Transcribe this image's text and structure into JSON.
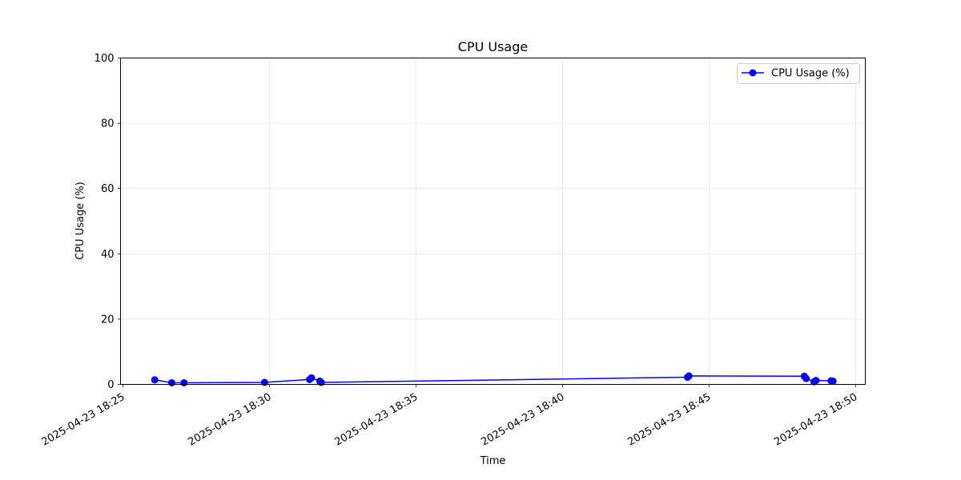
{
  "chart_data": {
    "type": "line",
    "title": "CPU Usage",
    "xlabel": "Time",
    "ylabel": "CPU Usage (%)",
    "ylim": [
      0,
      100
    ],
    "xlim": [
      "2025-04-23 18:24:55",
      "2025-04-23 18:50:20"
    ],
    "x_ticks": [
      "2025-04-23 18:25",
      "2025-04-23 18:30",
      "2025-04-23 18:35",
      "2025-04-23 18:40",
      "2025-04-23 18:45",
      "2025-04-23 18:50"
    ],
    "y_ticks": [
      0,
      20,
      40,
      60,
      80,
      100
    ],
    "grid": true,
    "legend_position": "top-right",
    "series": [
      {
        "name": "CPU Usage (%)",
        "color": "#0000ff",
        "marker": "circle",
        "x": [
          "2025-04-23 18:26:05",
          "2025-04-23 18:26:40",
          "2025-04-23 18:27:05",
          "2025-04-23 18:29:50",
          "2025-04-23 18:31:22",
          "2025-04-23 18:31:26",
          "2025-04-23 18:31:43",
          "2025-04-23 18:31:46",
          "2025-04-23 18:44:16",
          "2025-04-23 18:44:19",
          "2025-04-23 18:48:15",
          "2025-04-23 18:48:19",
          "2025-04-23 18:48:35",
          "2025-04-23 18:48:39",
          "2025-04-23 18:49:10",
          "2025-04-23 18:49:14"
        ],
        "y": [
          1.4,
          0.5,
          0.5,
          0.6,
          1.5,
          2.0,
          1.0,
          0.6,
          2.2,
          2.6,
          2.5,
          1.8,
          0.8,
          1.2,
          1.1,
          1.0
        ]
      }
    ]
  }
}
